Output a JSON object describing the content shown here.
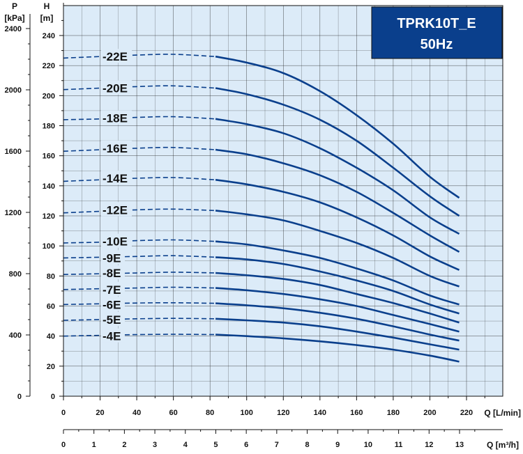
{
  "chart_data": {
    "type": "line",
    "title": "TPRK10T_E",
    "subtitle": "50Hz",
    "colors": {
      "curve": "#0a3f8c",
      "plot_bg": "#dcebf8",
      "title_bg": "#0a3f8c",
      "grid": "#222222"
    },
    "x_axis": {
      "label": "Q [L/min]",
      "ticks": [
        0,
        20,
        40,
        60,
        80,
        100,
        120,
        140,
        160,
        180,
        200,
        220
      ],
      "range": [
        0,
        240
      ]
    },
    "x2_axis": {
      "label": "Q [m³/h]",
      "ticks": [
        0,
        1,
        2,
        3,
        4,
        5,
        6,
        7,
        8,
        9,
        10,
        11,
        12,
        13
      ]
    },
    "y_axis": {
      "label_top": "H",
      "label_unit": "[m]",
      "ticks": [
        0,
        20,
        40,
        60,
        80,
        100,
        120,
        140,
        160,
        180,
        200,
        220,
        240
      ],
      "range": [
        0,
        256
      ]
    },
    "y2_axis": {
      "label_top": "P",
      "label_unit": "[kPa]",
      "ticks": [
        0,
        400,
        800,
        1200,
        1600,
        2000,
        2400
      ]
    },
    "operating_range": [
      83,
      216
    ],
    "series": [
      {
        "name": "-22E",
        "label_y": 226,
        "points": [
          [
            0,
            225
          ],
          [
            20,
            226
          ],
          [
            40,
            227
          ],
          [
            60,
            227.5
          ],
          [
            83,
            226
          ],
          [
            100,
            222
          ],
          [
            120,
            215
          ],
          [
            140,
            203
          ],
          [
            160,
            187
          ],
          [
            180,
            168
          ],
          [
            200,
            146
          ],
          [
            216,
            132
          ]
        ]
      },
      {
        "name": "-20E",
        "label_y": 205,
        "points": [
          [
            0,
            204
          ],
          [
            20,
            205
          ],
          [
            40,
            206
          ],
          [
            60,
            206.5
          ],
          [
            83,
            205
          ],
          [
            100,
            201
          ],
          [
            120,
            194
          ],
          [
            140,
            184
          ],
          [
            160,
            170
          ],
          [
            180,
            152
          ],
          [
            200,
            133
          ],
          [
            216,
            120
          ]
        ]
      },
      {
        "name": "-18E",
        "label_y": 185,
        "points": [
          [
            0,
            184
          ],
          [
            20,
            184.5
          ],
          [
            40,
            185.5
          ],
          [
            60,
            186
          ],
          [
            83,
            184.5
          ],
          [
            100,
            181
          ],
          [
            120,
            175
          ],
          [
            140,
            165
          ],
          [
            160,
            152
          ],
          [
            180,
            137
          ],
          [
            200,
            119
          ],
          [
            216,
            108
          ]
        ]
      },
      {
        "name": "-16E",
        "label_y": 165,
        "points": [
          [
            0,
            163
          ],
          [
            20,
            164
          ],
          [
            40,
            165
          ],
          [
            60,
            165.5
          ],
          [
            83,
            164
          ],
          [
            100,
            161
          ],
          [
            120,
            155
          ],
          [
            140,
            147
          ],
          [
            160,
            136
          ],
          [
            180,
            122
          ],
          [
            200,
            107
          ],
          [
            216,
            96
          ]
        ]
      },
      {
        "name": "-14E",
        "label_y": 145,
        "points": [
          [
            0,
            143
          ],
          [
            20,
            144
          ],
          [
            40,
            145
          ],
          [
            60,
            145.5
          ],
          [
            83,
            144
          ],
          [
            100,
            141
          ],
          [
            120,
            136
          ],
          [
            140,
            129
          ],
          [
            160,
            119
          ],
          [
            180,
            107
          ],
          [
            200,
            93
          ],
          [
            216,
            84
          ]
        ]
      },
      {
        "name": "-12E",
        "label_y": 124,
        "points": [
          [
            0,
            122
          ],
          [
            20,
            123
          ],
          [
            40,
            124
          ],
          [
            60,
            124.5
          ],
          [
            83,
            123.5
          ],
          [
            100,
            121
          ],
          [
            120,
            117
          ],
          [
            140,
            110
          ],
          [
            160,
            102
          ],
          [
            180,
            92
          ],
          [
            200,
            80
          ],
          [
            216,
            73
          ]
        ]
      },
      {
        "name": "-10E",
        "label_y": 103,
        "points": [
          [
            0,
            102
          ],
          [
            20,
            102.5
          ],
          [
            40,
            103.5
          ],
          [
            60,
            104
          ],
          [
            83,
            103
          ],
          [
            100,
            101
          ],
          [
            120,
            97
          ],
          [
            140,
            92
          ],
          [
            160,
            85
          ],
          [
            180,
            77
          ],
          [
            200,
            67
          ],
          [
            216,
            61
          ]
        ]
      },
      {
        "name": "-9E",
        "label_y": 92,
        "points": [
          [
            0,
            92
          ],
          [
            20,
            92.5
          ],
          [
            40,
            93
          ],
          [
            60,
            93.5
          ],
          [
            83,
            92.5
          ],
          [
            100,
            91
          ],
          [
            120,
            88
          ],
          [
            140,
            83
          ],
          [
            160,
            77
          ],
          [
            180,
            70
          ],
          [
            200,
            61
          ],
          [
            216,
            55
          ]
        ]
      },
      {
        "name": "-8E",
        "label_y": 82,
        "points": [
          [
            0,
            81
          ],
          [
            20,
            81.5
          ],
          [
            40,
            82
          ],
          [
            60,
            82.5
          ],
          [
            83,
            82
          ],
          [
            100,
            80.5
          ],
          [
            120,
            78
          ],
          [
            140,
            74
          ],
          [
            160,
            68
          ],
          [
            180,
            62
          ],
          [
            200,
            55
          ],
          [
            216,
            49
          ]
        ]
      },
      {
        "name": "-7E",
        "label_y": 71,
        "points": [
          [
            0,
            71
          ],
          [
            20,
            71.5
          ],
          [
            40,
            72
          ],
          [
            60,
            72.5
          ],
          [
            83,
            72
          ],
          [
            100,
            70.5
          ],
          [
            120,
            68
          ],
          [
            140,
            64.5
          ],
          [
            160,
            60
          ],
          [
            180,
            54
          ],
          [
            200,
            48
          ],
          [
            216,
            43
          ]
        ]
      },
      {
        "name": "-6E",
        "label_y": 61,
        "points": [
          [
            0,
            61
          ],
          [
            20,
            61.5
          ],
          [
            40,
            62
          ],
          [
            60,
            62.2
          ],
          [
            83,
            61.8
          ],
          [
            100,
            60.5
          ],
          [
            120,
            58.5
          ],
          [
            140,
            55.5
          ],
          [
            160,
            51.5
          ],
          [
            180,
            46.5
          ],
          [
            200,
            41
          ],
          [
            216,
            37
          ]
        ]
      },
      {
        "name": "-5E",
        "label_y": 51,
        "points": [
          [
            0,
            50.5
          ],
          [
            20,
            51
          ],
          [
            40,
            51.5
          ],
          [
            60,
            51.8
          ],
          [
            83,
            51.5
          ],
          [
            100,
            50.5
          ],
          [
            120,
            49
          ],
          [
            140,
            46.5
          ],
          [
            160,
            43
          ],
          [
            180,
            39
          ],
          [
            200,
            34.5
          ],
          [
            216,
            31
          ]
        ]
      },
      {
        "name": "-4E",
        "label_y": 40,
        "points": [
          [
            0,
            40
          ],
          [
            20,
            40.5
          ],
          [
            40,
            41
          ],
          [
            60,
            41.2
          ],
          [
            83,
            41
          ],
          [
            100,
            40
          ],
          [
            120,
            38.5
          ],
          [
            140,
            36.5
          ],
          [
            160,
            34
          ],
          [
            180,
            31
          ],
          [
            200,
            27
          ],
          [
            216,
            23
          ]
        ]
      }
    ]
  }
}
